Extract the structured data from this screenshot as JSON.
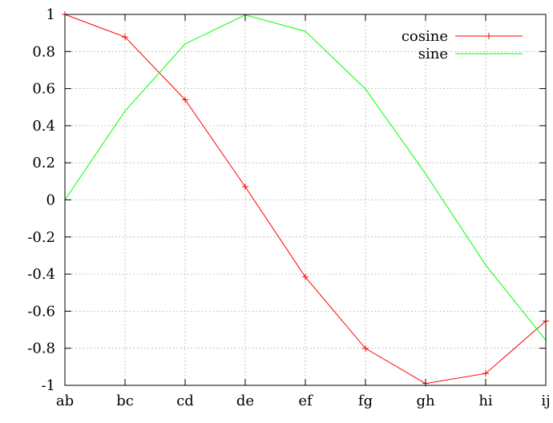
{
  "chart_data": {
    "type": "line",
    "categories": [
      "ab",
      "bc",
      "cd",
      "de",
      "ef",
      "fg",
      "gh",
      "hi",
      "ij"
    ],
    "y_ticks": [
      "1",
      "0.8",
      "0.6",
      "0.4",
      "0.2",
      "0",
      "-0.2",
      "-0.4",
      "-0.6",
      "-0.8",
      "-1"
    ],
    "ylim": [
      -1,
      1
    ],
    "grid": true,
    "legend_position": "top-right",
    "series": [
      {
        "name": "cosine",
        "color": "#ff0000",
        "marker": "plus",
        "values": [
          1.0,
          0.878,
          0.54,
          0.071,
          -0.416,
          -0.801,
          -0.99,
          -0.936,
          -0.654
        ]
      },
      {
        "name": "sine",
        "color": "#00ff00",
        "marker": "none",
        "values": [
          0.0,
          0.479,
          0.841,
          0.997,
          0.909,
          0.598,
          0.141,
          -0.351,
          -0.757
        ]
      }
    ]
  }
}
